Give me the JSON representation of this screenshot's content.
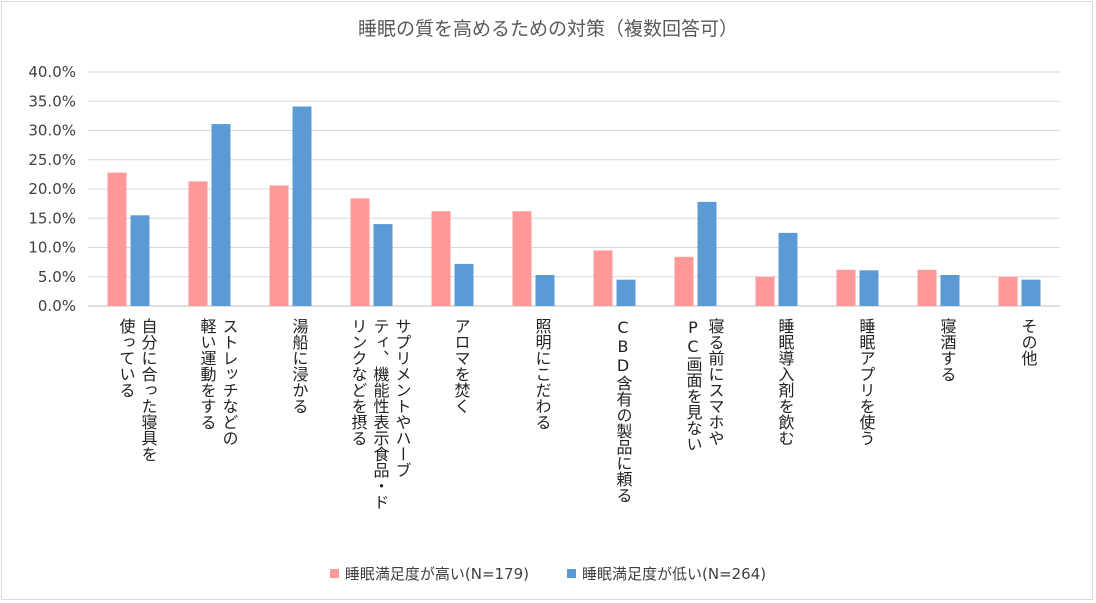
{
  "chart_data": {
    "type": "bar",
    "title": "睡眠の質を高めるための対策（複数回答可）",
    "categories": [
      "自分に合った寝具を\n使っている",
      "ストレッチなどの\n軽い運動をする",
      "湯船に浸かる",
      "サプリメントやハーブ\nティ、機能性表示食品・ド\nリンクなどを摂る",
      "アロマを焚く",
      "照明にこだわる",
      "CBD含有の製品に頼る",
      "寝る前にスマホや\nPC画面を見ない",
      "睡眠導入剤を飲む",
      "睡眠アプリを使う",
      "寝酒する",
      "その他"
    ],
    "series": [
      {
        "name": "睡眠満足度が高い(N=179)",
        "color": "#ff9999",
        "values": [
          22.8,
          21.3,
          20.6,
          18.4,
          16.2,
          16.2,
          9.5,
          8.4,
          5.0,
          6.2,
          6.2,
          5.0
        ]
      },
      {
        "name": "睡眠満足度が低い(N=264)",
        "color": "#5b9bd5",
        "values": [
          15.5,
          31.1,
          34.1,
          14.0,
          7.2,
          5.3,
          4.5,
          17.8,
          12.5,
          6.1,
          5.3,
          4.5
        ]
      }
    ],
    "ylim": [
      0,
      40
    ],
    "yticks": [
      "0.0%",
      "5.0%",
      "10.0%",
      "15.0%",
      "20.0%",
      "25.0%",
      "30.0%",
      "35.0%",
      "40.0%"
    ],
    "grid": true,
    "legend_position": "bottom"
  }
}
